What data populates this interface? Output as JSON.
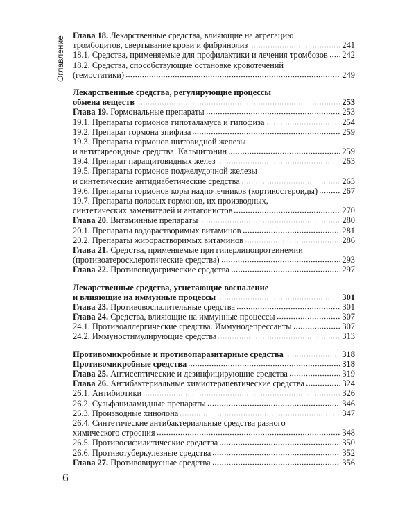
{
  "side_label": "Оглавление",
  "page_number": "6",
  "blocks": [
    {
      "entries": [
        {
          "chapter": "Глава 18.",
          "lines": [
            "Лекарственные средства, влияющие на агрегацию",
            "тромбоцитов, свертывание крови и фибринолиз"
          ],
          "page": 241
        },
        {
          "lines": [
            "18.1. Средства, применяемые для профилактики и лечения тромбозов"
          ],
          "page": 242
        },
        {
          "lines": [
            "18.2. Средства, способствующие остановке кровотечений",
            "(гемостатики)"
          ],
          "page": 249
        }
      ]
    },
    {
      "entries": [
        {
          "bold": true,
          "lines": [
            "Лекарственные средства, регулирующие процессы",
            "обмена веществ"
          ],
          "page": 253
        },
        {
          "chapter": "Глава 19.",
          "lines": [
            "Гормональные препараты"
          ],
          "page": 253
        },
        {
          "lines": [
            "19.1. Препараты гормонов гипоталамуса и гипофиза"
          ],
          "page": 254
        },
        {
          "lines": [
            "19.2. Препарат гормона эпифиза"
          ],
          "page": 259
        },
        {
          "lines": [
            "19.3. Препараты гормонов щитовидной железы",
            "и антитиреоидные средства. Кальцитонин"
          ],
          "page": 259
        },
        {
          "lines": [
            "19.4. Препарат паращитовидных желез"
          ],
          "page": 263
        },
        {
          "lines": [
            "19.5. Препараты гормонов поджелудочной железы",
            "и синтетические антидиабетические средства"
          ],
          "page": 263
        },
        {
          "lines": [
            "19.6. Препараты гормонов коры надпочечников (кортикостероиды)"
          ],
          "page": 267
        },
        {
          "lines": [
            "19.7. Препараты половых гормонов, их производных,",
            "синтетических заменителей и антагонистов"
          ],
          "page": 270
        },
        {
          "chapter": "Глава 20.",
          "lines": [
            "Витаминные препараты"
          ],
          "page": 280
        },
        {
          "lines": [
            "20.1. Препараты водорастворимых витаминов"
          ],
          "page": 281
        },
        {
          "lines": [
            "20.2. Препараты жирорастворимых витаминов"
          ],
          "page": 286
        },
        {
          "chapter": "Глава 21.",
          "lines": [
            "Средства, применяемые при гиперлипопротеинемии",
            "(противоатеросклеротические средства)"
          ],
          "page": 293
        },
        {
          "chapter": "Глава 22.",
          "lines": [
            "Противоподагрические средства"
          ],
          "page": 297
        }
      ]
    },
    {
      "entries": [
        {
          "bold": true,
          "lines": [
            "Лекарственные средства, угнетающие воспаление",
            "и влияющие на иммунные процессы"
          ],
          "page": 301
        },
        {
          "chapter": "Глава 23.",
          "lines": [
            "Противовоспалительные средства"
          ],
          "page": 301
        },
        {
          "chapter": "Глава 24.",
          "lines": [
            "Средства, влияющие на иммунные процессы"
          ],
          "page": 307
        },
        {
          "lines": [
            "24.1. Противоаллергические средства. Иммунодепрессанты"
          ],
          "page": 307
        },
        {
          "lines": [
            "24.2. Иммуностимулирующие средства"
          ],
          "page": 313
        }
      ]
    },
    {
      "entries": [
        {
          "bold": true,
          "lines": [
            "Противомикробные и противопаразитарные средства"
          ],
          "page": 318
        },
        {
          "bold": true,
          "lines": [
            "Противомикробные средства"
          ],
          "page": 318
        },
        {
          "chapter": "Глава 25.",
          "lines": [
            "Антисептические и дезинфицирующие средства"
          ],
          "page": 319
        },
        {
          "chapter": "Глава 26.",
          "lines": [
            "Антибактериальные химиотерапевтические средства"
          ],
          "page": 324
        },
        {
          "lines": [
            "26.1. Антибиотики"
          ],
          "page": 326
        },
        {
          "lines": [
            "26.2. Сульфаниламидные препараты"
          ],
          "page": 346
        },
        {
          "lines": [
            "26.3. Производные хинолона"
          ],
          "page": 347
        },
        {
          "lines": [
            "26.4. Синтетические антибактериальные средства разного",
            "химического строения"
          ],
          "page": 348
        },
        {
          "lines": [
            "26.5. Противосифилитические средства"
          ],
          "page": 350
        },
        {
          "lines": [
            "26.6. Противотуберкулезные средства"
          ],
          "page": 352
        },
        {
          "chapter": "Глава 27.",
          "lines": [
            "Противовирусные средства"
          ],
          "page": 356
        }
      ]
    }
  ]
}
